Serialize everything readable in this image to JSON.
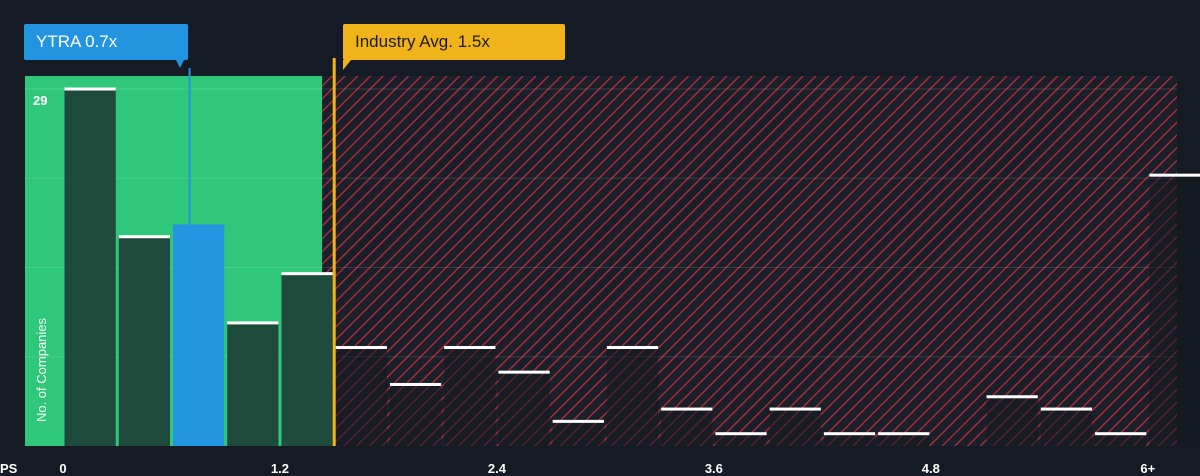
{
  "callouts": {
    "company": "YTRA 0.7x",
    "industry": "Industry Avg. 1.5x"
  },
  "colors": {
    "background": "#151b24",
    "fair_zone": "#2fc87a",
    "bar_dark": "#1d4a3b",
    "company_bar": "#2394e0",
    "overvalued_hatch": "#c2303e",
    "industry_line": "#f0b41a",
    "bar_cap": "#ffffff"
  },
  "chart_data": {
    "type": "bar",
    "title": "",
    "xlabel": "PS",
    "ylabel": "No. of Companies",
    "ylim": [
      0,
      29
    ],
    "x_tick_labels": [
      "0",
      "1.2",
      "2.4",
      "3.6",
      "4.8",
      "6+"
    ],
    "x_tick_values": [
      0,
      1.2,
      2.4,
      3.6,
      4.8,
      6
    ],
    "y_tick_labels": [
      "29"
    ],
    "bin_width": 0.3,
    "series": [
      {
        "bins": [
          0,
          0.3,
          0.6,
          0.9,
          1.2,
          1.5,
          1.8,
          2.1,
          2.4,
          2.7,
          3.0,
          3.3,
          3.6,
          3.9,
          4.2,
          4.5,
          4.8,
          5.1,
          5.4,
          5.7,
          6.0
        ],
        "values": [
          29,
          17,
          18,
          10,
          14,
          8,
          5,
          8,
          6,
          2,
          8,
          3,
          1,
          3,
          1,
          1,
          0,
          4,
          3,
          1,
          22
        ]
      }
    ],
    "company": {
      "name": "YTRA",
      "value": 0.7
    },
    "industry_average": 1.5
  }
}
